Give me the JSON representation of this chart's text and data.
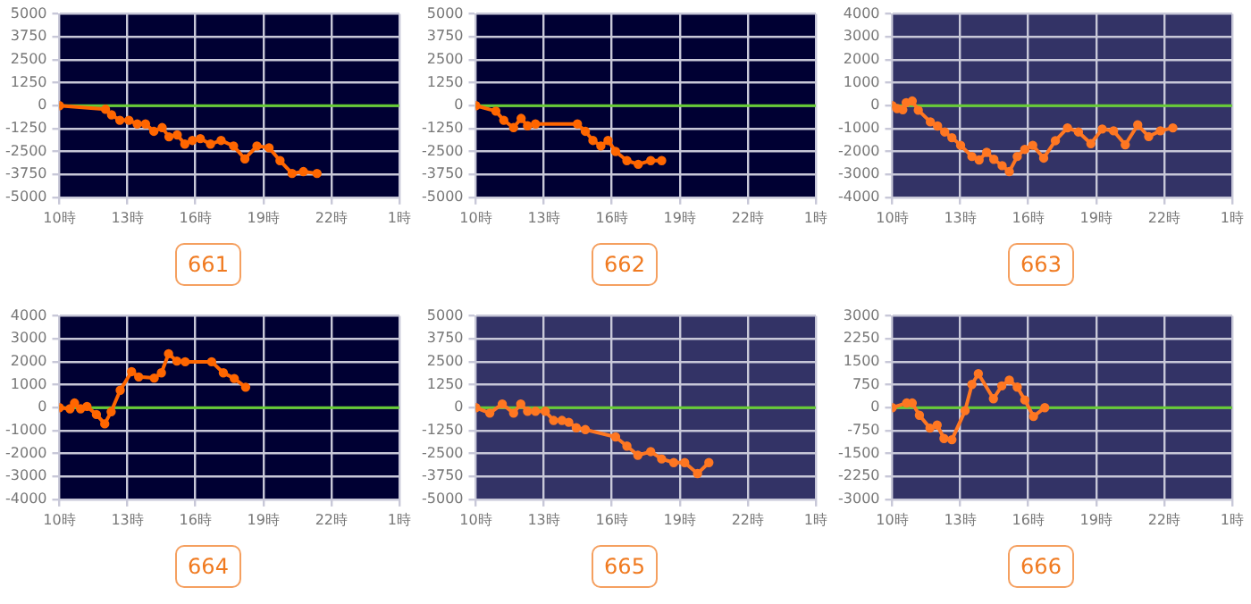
{
  "chart_data": [
    {
      "type": "line",
      "title": "661",
      "xlim": [
        "--01-01T10:00",
        "--01-02T01:00"
      ],
      "xticks": [
        {
          "value": "--01-01T10:00",
          "label": "10時"
        },
        {
          "value": "--01-01T13:00",
          "label": "13時"
        },
        {
          "value": "--01-01T16:00",
          "label": "16時"
        },
        {
          "value": "--01-01T19:00",
          "label": "19時"
        },
        {
          "value": "--01-01T22:00",
          "label": "22時"
        },
        {
          "value": "--01-02T01:00",
          "label": "1時"
        }
      ],
      "ylim": [
        -5000,
        5000
      ],
      "yticks": [
        -5000,
        -3750,
        -2500,
        -1250,
        0,
        1250,
        2500,
        3750,
        5000
      ],
      "grid": true,
      "marker": "circle",
      "ref_lines": [
        {
          "axis": "y",
          "value": 0,
          "color": "#66cc33"
        }
      ],
      "series": [
        {
          "color": "#ff6600",
          "x": [
            "--01-01T10:00",
            "--01-01T12:02",
            "--01-01T12:18",
            "--01-01T12:40",
            "--01-01T13:04",
            "--01-01T13:26",
            "--01-01T13:48",
            "--01-01T14:10",
            "--01-01T14:32",
            "--01-01T14:50",
            "--01-01T15:12",
            "--01-01T15:32",
            "--01-01T15:52",
            "--01-01T16:13",
            "--01-01T16:40",
            "--01-01T17:08",
            "--01-01T17:41",
            "--01-01T18:11",
            "--01-01T18:43",
            "--01-01T19:15",
            "--01-01T19:44",
            "--01-01T20:16",
            "--01-01T20:46",
            "--01-01T21:22"
          ],
          "values": [
            0,
            -200,
            -500,
            -800,
            -800,
            -1000,
            -1000,
            -1400,
            -1200,
            -1700,
            -1600,
            -2100,
            -1900,
            -1800,
            -2100,
            -1900,
            -2200,
            -2900,
            -2200,
            -2300,
            -3000,
            -3700,
            -3600,
            -3700
          ]
        }
      ]
    },
    {
      "type": "line",
      "title": "662",
      "xlim": [
        "--01-01T10:00",
        "--01-02T01:00"
      ],
      "xticks": [
        {
          "value": "--01-01T10:00",
          "label": "10時"
        },
        {
          "value": "--01-01T13:00",
          "label": "13時"
        },
        {
          "value": "--01-01T16:00",
          "label": "16時"
        },
        {
          "value": "--01-01T19:00",
          "label": "19時"
        },
        {
          "value": "--01-01T22:00",
          "label": "22時"
        },
        {
          "value": "--01-02T01:00",
          "label": "1時"
        }
      ],
      "ylim": [
        -5000,
        5000
      ],
      "yticks": [
        -5000,
        -3750,
        -2500,
        -1250,
        0,
        1250,
        2500,
        3750,
        5000
      ],
      "grid": true,
      "marker": "circle",
      "ref_lines": [
        {
          "axis": "y",
          "value": 0,
          "color": "#66cc33"
        }
      ],
      "series": [
        {
          "color": "#ff6600",
          "x": [
            "--01-01T10:00",
            "--01-01T10:53",
            "--01-01T11:14",
            "--01-01T11:40",
            "--01-01T12:00",
            "--01-01T12:17",
            "--01-01T12:38",
            "--01-01T14:29",
            "--01-01T14:50",
            "--01-01T15:10",
            "--01-01T15:31",
            "--01-01T15:50",
            "--01-01T16:10",
            "--01-01T16:40",
            "--01-01T17:10",
            "--01-01T17:43",
            "--01-01T18:12"
          ],
          "values": [
            0,
            -300,
            -800,
            -1200,
            -700,
            -1100,
            -1000,
            -1000,
            -1400,
            -1900,
            -2200,
            -1900,
            -2500,
            -3000,
            -3200,
            -3000,
            -3000
          ]
        }
      ]
    },
    {
      "type": "line",
      "title": "663",
      "xlim": [
        "--01-01T10:00",
        "--01-02T01:00"
      ],
      "xticks": [
        {
          "value": "--01-01T10:00",
          "label": "10時"
        },
        {
          "value": "--01-01T13:00",
          "label": "13時"
        },
        {
          "value": "--01-01T16:00",
          "label": "16時"
        },
        {
          "value": "--01-01T19:00",
          "label": "19時"
        },
        {
          "value": "--01-01T22:00",
          "label": "22時"
        },
        {
          "value": "--01-02T01:00",
          "label": "1時"
        }
      ],
      "ylim": [
        -4000,
        4000
      ],
      "yticks": [
        -4000,
        -3000,
        -2000,
        -1000,
        0,
        1000,
        2000,
        3000,
        4000
      ],
      "grid": true,
      "marker": "circle",
      "ref_lines": [
        {
          "axis": "y",
          "value": 0,
          "color": "#66cc33"
        }
      ],
      "series": [
        {
          "color": "#ff7722",
          "x": [
            "--01-01T10:00",
            "--01-01T10:13",
            "--01-01T10:28",
            "--01-01T10:37",
            "--01-01T10:53",
            "--01-01T11:09",
            "--01-01T11:41",
            "--01-01T12:00",
            "--01-01T12:19",
            "--01-01T12:38",
            "--01-01T13:01",
            "--01-01T13:31",
            "--01-01T13:50",
            "--01-01T14:10",
            "--01-01T14:29",
            "--01-01T14:51",
            "--01-01T15:10",
            "--01-01T15:31",
            "--01-01T15:51",
            "--01-01T16:12",
            "--01-01T16:41",
            "--01-01T17:12",
            "--01-01T17:44",
            "--01-01T18:13",
            "--01-01T18:46",
            "--01-01T19:16",
            "--01-01T19:46",
            "--01-01T20:17",
            "--01-01T20:50",
            "--01-01T21:19",
            "--01-01T21:50",
            "--01-01T22:23"
          ],
          "values": [
            0,
            -130,
            -180,
            130,
            200,
            -200,
            -710,
            -890,
            -1150,
            -1400,
            -1730,
            -2220,
            -2370,
            -2040,
            -2340,
            -2620,
            -2880,
            -2220,
            -1910,
            -1730,
            -2290,
            -1530,
            -970,
            -1150,
            -1660,
            -1020,
            -1100,
            -1710,
            -840,
            -1350,
            -1100,
            -970
          ]
        }
      ]
    },
    {
      "type": "line",
      "title": "664",
      "xlim": [
        "--01-01T10:00",
        "--01-02T01:00"
      ],
      "xticks": [
        {
          "value": "--01-01T10:00",
          "label": "10時"
        },
        {
          "value": "--01-01T13:00",
          "label": "13時"
        },
        {
          "value": "--01-01T16:00",
          "label": "16時"
        },
        {
          "value": "--01-01T19:00",
          "label": "19時"
        },
        {
          "value": "--01-01T22:00",
          "label": "22時"
        },
        {
          "value": "--01-02T01:00",
          "label": "1時"
        }
      ],
      "ylim": [
        -4000,
        4000
      ],
      "yticks": [
        -4000,
        -3000,
        -2000,
        -1000,
        0,
        1000,
        2000,
        3000,
        4000
      ],
      "grid": true,
      "marker": "circle",
      "ref_lines": [
        {
          "axis": "y",
          "value": 0,
          "color": "#66cc33"
        }
      ],
      "series": [
        {
          "color": "#ff6600",
          "x": [
            "--01-01T10:00",
            "--01-01T10:28",
            "--01-01T10:40",
            "--01-01T10:56",
            "--01-01T11:13",
            "--01-01T11:38",
            "--01-01T12:00",
            "--01-01T12:17",
            "--01-01T12:41",
            "--01-01T13:11",
            "--01-01T13:30",
            "--01-01T14:11",
            "--01-01T14:30",
            "--01-01T14:49",
            "--01-01T15:11",
            "--01-01T15:33",
            "--01-01T16:43",
            "--01-01T17:14",
            "--01-01T17:43",
            "--01-01T18:13"
          ],
          "values": [
            0,
            -50,
            200,
            -50,
            50,
            -300,
            -710,
            -180,
            760,
            1570,
            1340,
            1290,
            1520,
            2350,
            2030,
            2000,
            2000,
            1520,
            1270,
            890
          ]
        }
      ]
    },
    {
      "type": "line",
      "title": "665",
      "xlim": [
        "--01-01T10:00",
        "--01-02T01:00"
      ],
      "xticks": [
        {
          "value": "--01-01T10:00",
          "label": "10時"
        },
        {
          "value": "--01-01T13:00",
          "label": "13時"
        },
        {
          "value": "--01-01T16:00",
          "label": "16時"
        },
        {
          "value": "--01-01T19:00",
          "label": "19時"
        },
        {
          "value": "--01-01T22:00",
          "label": "22時"
        },
        {
          "value": "--01-02T01:00",
          "label": "1時"
        }
      ],
      "ylim": [
        -5000,
        5000
      ],
      "yticks": [
        -5000,
        -3750,
        -2500,
        -1250,
        0,
        1250,
        2500,
        3750,
        5000
      ],
      "grid": true,
      "marker": "circle",
      "ref_lines": [
        {
          "axis": "y",
          "value": 0,
          "color": "#66cc33"
        }
      ],
      "series": [
        {
          "color": "#ff7722",
          "x": [
            "--01-01T10:00",
            "--01-01T10:37",
            "--01-01T11:10",
            "--01-01T11:40",
            "--01-01T11:59",
            "--01-01T12:17",
            "--01-01T12:38",
            "--01-01T13:04",
            "--01-01T13:26",
            "--01-01T13:48",
            "--01-01T14:06",
            "--01-01T14:26",
            "--01-01T14:50",
            "--01-01T16:10",
            "--01-01T16:40",
            "--01-01T17:09",
            "--01-01T17:43",
            "--01-01T18:12",
            "--01-01T18:44",
            "--01-01T19:13",
            "--01-01T19:47",
            "--01-01T20:17"
          ],
          "values": [
            0,
            -300,
            200,
            -300,
            200,
            -200,
            -200,
            -200,
            -700,
            -700,
            -800,
            -1100,
            -1200,
            -1600,
            -2100,
            -2600,
            -2400,
            -2800,
            -3000,
            -3000,
            -3600,
            -3000
          ]
        }
      ]
    },
    {
      "type": "line",
      "title": "666",
      "xlim": [
        "--01-01T10:00",
        "--01-02T01:00"
      ],
      "xticks": [
        {
          "value": "--01-01T10:00",
          "label": "10時"
        },
        {
          "value": "--01-01T13:00",
          "label": "13時"
        },
        {
          "value": "--01-01T16:00",
          "label": "16時"
        },
        {
          "value": "--01-01T19:00",
          "label": "19時"
        },
        {
          "value": "--01-01T22:00",
          "label": "22時"
        },
        {
          "value": "--01-02T01:00",
          "label": "1時"
        }
      ],
      "ylim": [
        -3000,
        3000
      ],
      "yticks": [
        -3000,
        -2250,
        -1500,
        -750,
        0,
        750,
        1500,
        2250,
        3000
      ],
      "grid": true,
      "marker": "circle",
      "ref_lines": [
        {
          "axis": "y",
          "value": 0,
          "color": "#66cc33"
        }
      ],
      "series": [
        {
          "color": "#ff7722",
          "x": [
            "--01-01T10:00",
            "--01-01T10:38",
            "--01-01T10:53",
            "--01-01T11:12",
            "--01-01T11:40",
            "--01-01T11:59",
            "--01-01T12:17",
            "--01-01T12:38",
            "--01-01T13:13",
            "--01-01T13:31",
            "--01-01T13:48",
            "--01-01T14:28",
            "--01-01T14:50",
            "--01-01T15:10",
            "--01-01T15:31",
            "--01-01T15:51",
            "--01-01T16:14",
            "--01-01T16:44"
          ],
          "values": [
            0,
            150,
            150,
            -250,
            -670,
            -570,
            -1010,
            -1050,
            -100,
            760,
            1110,
            290,
            710,
            900,
            670,
            250,
            -290,
            0
          ]
        }
      ]
    }
  ]
}
